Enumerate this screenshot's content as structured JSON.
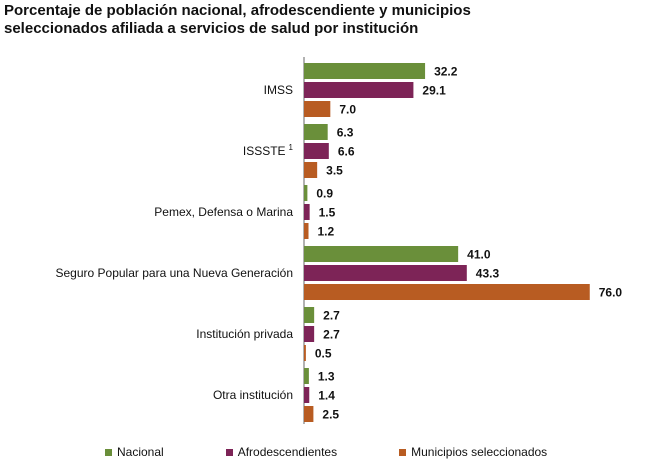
{
  "chart_data": {
    "type": "bar",
    "orientation": "horizontal",
    "title_lines": [
      "Porcentaje de población nacional, afrodescendiente y municipios",
      "seleccionados afiliada a servicios de salud por institución"
    ],
    "categories": [
      "IMSS",
      "ISSSTE",
      "Pemex, Defensa o Marina",
      "Seguro Popular para una Nueva Generación",
      "Institución privada",
      "Otra institución"
    ],
    "category_superscripts": [
      "",
      "1",
      "",
      "",
      "",
      ""
    ],
    "series": [
      {
        "name": "Nacional",
        "color": "#6a8f3a",
        "values": [
          32.2,
          6.3,
          0.9,
          41.0,
          2.7,
          1.3
        ]
      },
      {
        "name": "Afrodescendientes",
        "color": "#7d2457",
        "values": [
          29.1,
          6.6,
          1.5,
          43.3,
          2.7,
          1.4
        ]
      },
      {
        "name": "Municipios seleccionados",
        "color": "#b85c22",
        "values": [
          7.0,
          3.5,
          1.2,
          76.0,
          0.5,
          2.5
        ]
      }
    ],
    "value_labels": [
      [
        "32.2",
        "6.3",
        "0.9",
        "41.0",
        "2.7",
        "1.3"
      ],
      [
        "29.1",
        "6.6",
        "1.5",
        "43.3",
        "2.7",
        "1.4"
      ],
      [
        "7.0",
        "3.5",
        "1.2",
        "76.0",
        "0.5",
        "2.5"
      ]
    ],
    "xlim": [
      0,
      100
    ],
    "grid": false,
    "legend_position": "bottom"
  }
}
